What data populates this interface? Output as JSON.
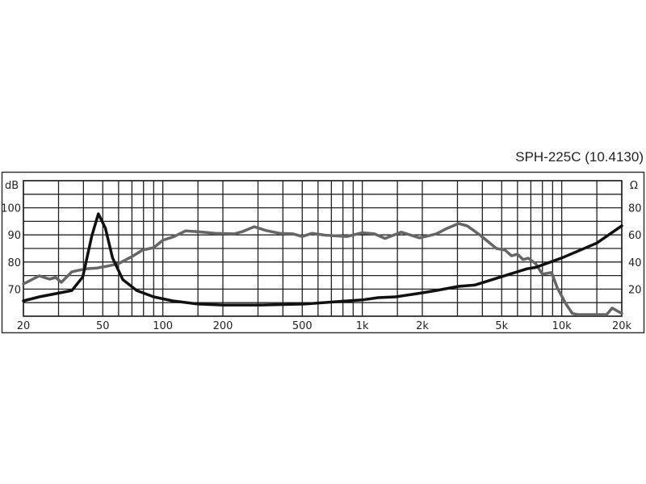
{
  "chart_data": {
    "type": "line",
    "title": "SPH-225C (10.4130)",
    "ylabel_left": "dB",
    "ylabel_right": "Ω",
    "x_scale": "log",
    "xlim": [
      20,
      20000
    ],
    "ylim_left": [
      60,
      110
    ],
    "ylim_right": [
      0,
      100
    ],
    "grid": true,
    "x_ticks": [
      {
        "v": 20,
        "t": "20"
      },
      {
        "v": 50,
        "t": "50"
      },
      {
        "v": 100,
        "t": "100"
      },
      {
        "v": 200,
        "t": "200"
      },
      {
        "v": 500,
        "t": "500"
      },
      {
        "v": 1000,
        "t": "1k"
      },
      {
        "v": 2000,
        "t": "2k"
      },
      {
        "v": 5000,
        "t": "5k"
      },
      {
        "v": 10000,
        "t": "10k"
      },
      {
        "v": 20000,
        "t": "20k"
      }
    ],
    "y_ticks_left": [
      {
        "v": 100,
        "t": "100"
      },
      {
        "v": 90,
        "t": "90"
      },
      {
        "v": 80,
        "t": "80"
      },
      {
        "v": 70,
        "t": "70"
      }
    ],
    "y_ticks_right": [
      {
        "v": 80,
        "t": "80"
      },
      {
        "v": 60,
        "t": "60"
      },
      {
        "v": 40,
        "t": "40"
      },
      {
        "v": 20,
        "t": "20"
      }
    ],
    "x_grid": [
      20,
      30,
      40,
      50,
      60,
      70,
      80,
      90,
      100,
      150,
      200,
      300,
      400,
      500,
      600,
      700,
      800,
      900,
      1000,
      1500,
      2000,
      3000,
      4000,
      5000,
      6000,
      7000,
      8000,
      9000,
      10000,
      15000,
      20000
    ],
    "y_grid_left": [
      60,
      65,
      70,
      75,
      80,
      85,
      90,
      95,
      100,
      105,
      110
    ],
    "series": [
      {
        "axis": "left",
        "color": "#666666",
        "x": [
          20,
          24,
          27,
          29,
          31,
          35,
          41,
          47,
          53,
          60,
          70,
          79,
          90,
          100,
          114,
          130,
          150,
          183,
          228,
          250,
          287,
          330,
          385,
          450,
          500,
          560,
          650,
          840,
          1000,
          1150,
          1300,
          1570,
          1940,
          2350,
          2660,
          3040,
          3360,
          3900,
          4700,
          5200,
          5600,
          6000,
          6400,
          6800,
          7400,
          8000,
          8900,
          9500,
          10500,
          11300,
          12000,
          16800,
          17900,
          20000
        ],
        "y": [
          71.9,
          74.9,
          73.7,
          74.3,
          72.5,
          76.4,
          77.5,
          77.8,
          78.5,
          79.4,
          82,
          84.4,
          85.3,
          88,
          89.4,
          91.5,
          91.2,
          90.6,
          90.4,
          91.2,
          93,
          91.6,
          90.6,
          90.4,
          89.4,
          90.6,
          89.9,
          89.4,
          90.8,
          90.4,
          88.7,
          91,
          88.9,
          90.4,
          92.4,
          94.2,
          93.3,
          89.9,
          85,
          84.4,
          82.3,
          82.9,
          80.9,
          81.4,
          79.4,
          75.5,
          76.1,
          70.5,
          64.5,
          61,
          60.6,
          60.6,
          63,
          61
        ]
      },
      {
        "axis": "right",
        "color": "#111111",
        "x": [
          20,
          24,
          35,
          39.7,
          44,
          47.5,
          51.5,
          56,
          63,
          74,
          90,
          112,
          150,
          200,
          310,
          510,
          790,
          1000,
          1200,
          1470,
          1900,
          2350,
          3040,
          3660,
          4950,
          6700,
          7400,
          10000,
          15000,
          20000
        ],
        "y": [
          11.3,
          14.3,
          19,
          29,
          59,
          75.6,
          65,
          43,
          27,
          19,
          14.3,
          11.3,
          9,
          8.3,
          8.3,
          9,
          11,
          12,
          13.7,
          14.3,
          16.7,
          19,
          22,
          23,
          29,
          35,
          36,
          43,
          54,
          66.7
        ]
      }
    ]
  }
}
